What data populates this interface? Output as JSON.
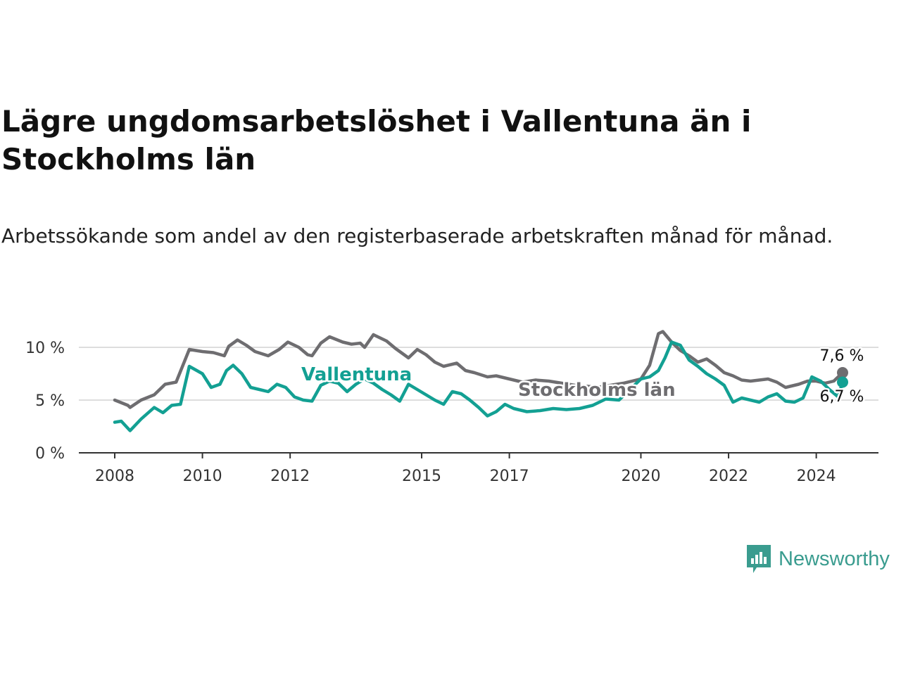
{
  "title": "Lägre ungdomsarbetslöshet i Vallentuna än i Stockholms län",
  "subtitle": "Arbetssökande som andel av den registerbaserade arbetskraften månad för månad.",
  "brand": {
    "name": "Newsworthy",
    "icon": "newsworthy-logo-icon"
  },
  "colors": {
    "vallentuna": "#13a093",
    "stockholm": "#6e6d70",
    "grid": "#dddddd",
    "axis": "#333333",
    "brand": "#3a9c8f"
  },
  "chart_data": {
    "type": "line",
    "title": "Lägre ungdomsarbetslöshet i Vallentuna än i Stockholms län",
    "xlabel": "",
    "ylabel": "",
    "x_range": [
      2008,
      2024.6
    ],
    "ylim": [
      0,
      10
    ],
    "y_ticks": [
      0,
      5,
      10
    ],
    "y_tick_labels": [
      "0 %",
      "5 %",
      "10 %"
    ],
    "x_ticks": [
      2008,
      2010,
      2012,
      2015,
      2017,
      2020,
      2022,
      2024
    ],
    "x_tick_labels": [
      "2008",
      "2010",
      "2012",
      "2015",
      "2017",
      "2020",
      "2022",
      "2024"
    ],
    "grid": true,
    "series": [
      {
        "name": "Stockholms län",
        "label": "Stockholms län",
        "end_label": "7,6 %",
        "color": "#6e6d70",
        "x": [
          2008.0,
          2008.3,
          2008.35,
          2008.6,
          2008.9,
          2009.15,
          2009.4,
          2009.7,
          2010.0,
          2010.25,
          2010.5,
          2010.6,
          2010.8,
          2011.0,
          2011.2,
          2011.5,
          2011.75,
          2011.95,
          2012.2,
          2012.4,
          2012.5,
          2012.7,
          2012.9,
          2013.2,
          2013.4,
          2013.6,
          2013.7,
          2013.9,
          2014.2,
          2014.4,
          2014.5,
          2014.7,
          2014.9,
          2015.1,
          2015.3,
          2015.5,
          2015.8,
          2016.0,
          2016.2,
          2016.5,
          2016.7,
          2017.0,
          2017.3,
          2017.6,
          2017.9,
          2018.2,
          2018.5,
          2018.8,
          2019.0,
          2019.3,
          2019.6,
          2019.8,
          2020.0,
          2020.2,
          2020.4,
          2020.5,
          2020.7,
          2020.9,
          2021.1,
          2021.3,
          2021.5,
          2021.7,
          2021.9,
          2022.1,
          2022.3,
          2022.5,
          2022.7,
          2022.9,
          2023.1,
          2023.3,
          2023.6,
          2023.8,
          2024.0,
          2024.2,
          2024.4,
          2024.6
        ],
        "y": [
          5.0,
          4.5,
          4.3,
          5.0,
          5.5,
          6.5,
          6.7,
          9.8,
          9.6,
          9.5,
          9.2,
          10.1,
          10.7,
          10.2,
          9.6,
          9.2,
          9.8,
          10.5,
          10.0,
          9.3,
          9.2,
          10.4,
          11.0,
          10.5,
          10.3,
          10.4,
          10.0,
          11.2,
          10.6,
          9.9,
          9.6,
          9.0,
          9.8,
          9.3,
          8.6,
          8.2,
          8.5,
          7.8,
          7.6,
          7.2,
          7.3,
          7.0,
          6.7,
          6.9,
          6.8,
          6.6,
          6.4,
          6.3,
          6.2,
          6.4,
          6.6,
          6.8,
          7.0,
          8.3,
          11.3,
          11.5,
          10.5,
          9.7,
          9.2,
          8.6,
          8.9,
          8.3,
          7.6,
          7.3,
          6.9,
          6.8,
          6.9,
          7.0,
          6.7,
          6.2,
          6.5,
          6.8,
          6.8,
          6.6,
          6.8,
          7.6
        ]
      },
      {
        "name": "Vallentuna",
        "label": "Vallentuna",
        "end_label": "6,7 %",
        "color": "#13a093",
        "x": [
          2008.0,
          2008.15,
          2008.35,
          2008.6,
          2008.9,
          2009.1,
          2009.3,
          2009.5,
          2009.7,
          2010.0,
          2010.2,
          2010.4,
          2010.55,
          2010.7,
          2010.9,
          2011.1,
          2011.3,
          2011.5,
          2011.7,
          2011.9,
          2012.1,
          2012.3,
          2012.5,
          2012.7,
          2012.9,
          2013.1,
          2013.3,
          2013.5,
          2013.7,
          2013.9,
          2014.1,
          2014.3,
          2014.5,
          2014.7,
          2014.9,
          2015.1,
          2015.3,
          2015.5,
          2015.7,
          2015.9,
          2016.1,
          2016.3,
          2016.5,
          2016.7,
          2016.9,
          2017.1,
          2017.4,
          2017.7,
          2018.0,
          2018.3,
          2018.6,
          2018.9,
          2019.2,
          2019.5,
          2019.8,
          2020.0,
          2020.2,
          2020.4,
          2020.55,
          2020.7,
          2020.9,
          2021.1,
          2021.3,
          2021.5,
          2021.7,
          2021.9,
          2022.1,
          2022.3,
          2022.5,
          2022.7,
          2022.9,
          2023.1,
          2023.3,
          2023.5,
          2023.7,
          2023.9,
          2024.1,
          2024.3,
          2024.5,
          2024.6
        ],
        "y": [
          2.9,
          3.0,
          2.1,
          3.2,
          4.3,
          3.8,
          4.5,
          4.6,
          8.2,
          7.5,
          6.2,
          6.5,
          7.8,
          8.3,
          7.5,
          6.2,
          6.0,
          5.8,
          6.5,
          6.2,
          5.3,
          5.0,
          4.9,
          6.4,
          6.8,
          6.6,
          5.8,
          6.5,
          7.0,
          6.6,
          6.0,
          5.5,
          4.9,
          6.5,
          6.0,
          5.5,
          5.0,
          4.6,
          5.8,
          5.6,
          5.0,
          4.3,
          3.5,
          3.9,
          4.6,
          4.2,
          3.9,
          4.0,
          4.2,
          4.1,
          4.2,
          4.5,
          5.1,
          5.0,
          6.2,
          7.0,
          7.2,
          7.8,
          9.0,
          10.5,
          10.2,
          8.8,
          8.2,
          7.5,
          7.0,
          6.4,
          4.8,
          5.2,
          5.0,
          4.8,
          5.3,
          5.6,
          4.9,
          4.8,
          5.2,
          7.2,
          6.8,
          6.0,
          5.3,
          6.7
        ]
      }
    ]
  }
}
